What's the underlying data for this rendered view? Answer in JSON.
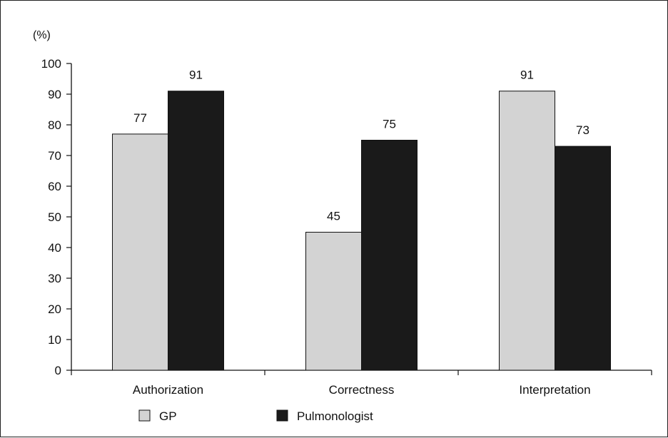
{
  "chart_data": {
    "type": "bar",
    "unit_label": "(%)",
    "categories": [
      "Authorization",
      "Correctness",
      "Interpretation"
    ],
    "series": [
      {
        "name": "GP",
        "values": [
          77,
          45,
          91
        ],
        "color": "#d3d3d3"
      },
      {
        "name": "Pulmonologist",
        "values": [
          91,
          75,
          73
        ],
        "color": "#1a1a1a"
      }
    ],
    "yticks": [
      "0",
      "10",
      "20",
      "30",
      "40",
      "50",
      "60",
      "70",
      "80",
      "90",
      "100"
    ],
    "ylim": [
      0,
      100
    ],
    "grid": false,
    "legend_position": "bottom-left"
  }
}
